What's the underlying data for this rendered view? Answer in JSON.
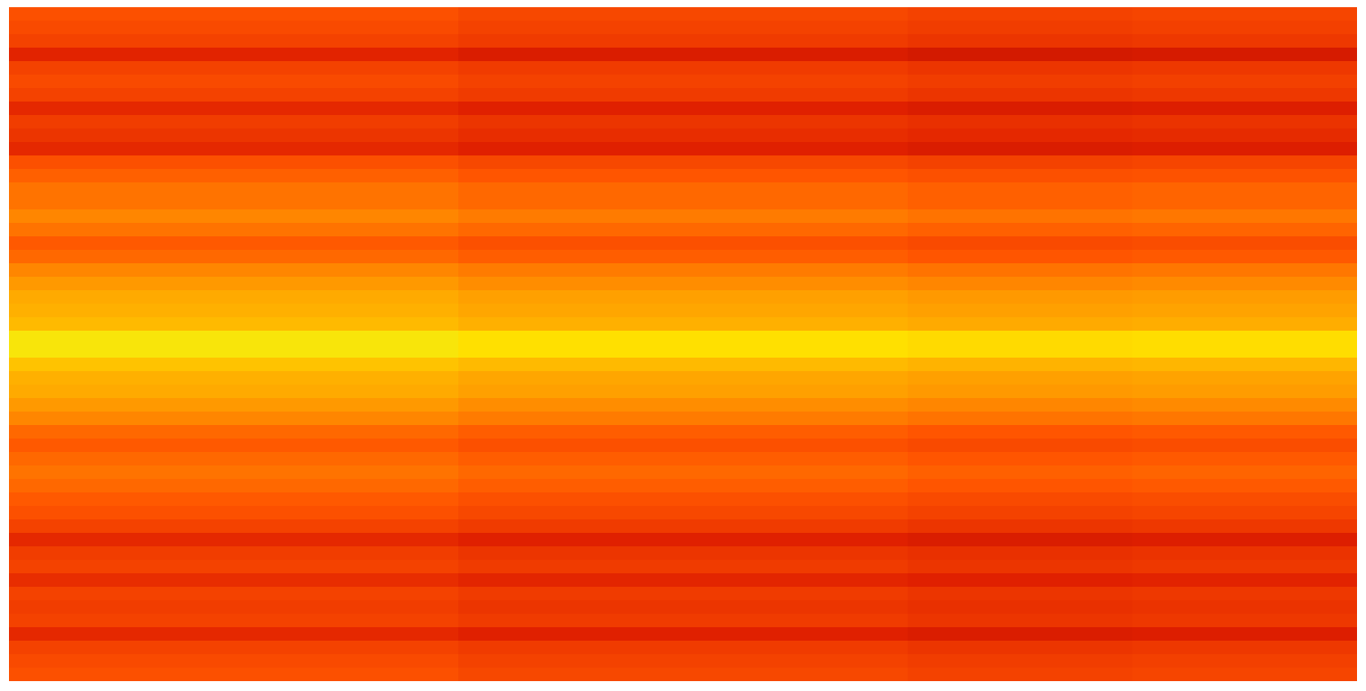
{
  "chart_data": {
    "type": "heatmap",
    "tick_labels": false,
    "zlim": [
      0,
      1
    ],
    "cells": [
      [
        0.38,
        0.38,
        0.35,
        0.35,
        0.33,
        0.34
      ],
      [
        0.36,
        0.36,
        0.33,
        0.33,
        0.31,
        0.32
      ],
      [
        0.33,
        0.33,
        0.3,
        0.3,
        0.28,
        0.29
      ],
      [
        0.21,
        0.21,
        0.18,
        0.18,
        0.16,
        0.17
      ],
      [
        0.33,
        0.33,
        0.3,
        0.3,
        0.28,
        0.29
      ],
      [
        0.36,
        0.36,
        0.33,
        0.33,
        0.31,
        0.32
      ],
      [
        0.33,
        0.33,
        0.3,
        0.3,
        0.28,
        0.29
      ],
      [
        0.23,
        0.23,
        0.2,
        0.2,
        0.18,
        0.19
      ],
      [
        0.31,
        0.31,
        0.28,
        0.28,
        0.26,
        0.27
      ],
      [
        0.28,
        0.28,
        0.25,
        0.25,
        0.23,
        0.24
      ],
      [
        0.23,
        0.23,
        0.2,
        0.2,
        0.18,
        0.19
      ],
      [
        0.38,
        0.38,
        0.35,
        0.35,
        0.33,
        0.34
      ],
      [
        0.43,
        0.43,
        0.4,
        0.4,
        0.38,
        0.39
      ],
      [
        0.48,
        0.48,
        0.45,
        0.45,
        0.43,
        0.44
      ],
      [
        0.48,
        0.48,
        0.45,
        0.45,
        0.43,
        0.44
      ],
      [
        0.53,
        0.53,
        0.5,
        0.5,
        0.48,
        0.49
      ],
      [
        0.48,
        0.48,
        0.45,
        0.45,
        0.43,
        0.44
      ],
      [
        0.41,
        0.41,
        0.38,
        0.38,
        0.36,
        0.37
      ],
      [
        0.45,
        0.45,
        0.42,
        0.42,
        0.4,
        0.41
      ],
      [
        0.53,
        0.53,
        0.5,
        0.5,
        0.48,
        0.49
      ],
      [
        0.58,
        0.58,
        0.55,
        0.55,
        0.53,
        0.54
      ],
      [
        0.63,
        0.63,
        0.6,
        0.6,
        0.58,
        0.59
      ],
      [
        0.65,
        0.65,
        0.62,
        0.62,
        0.6,
        0.61
      ],
      [
        0.68,
        0.68,
        0.65,
        0.65,
        0.63,
        0.64
      ],
      [
        0.83,
        0.83,
        0.8,
        0.8,
        0.78,
        0.79
      ],
      [
        0.83,
        0.83,
        0.8,
        0.8,
        0.78,
        0.79
      ],
      [
        0.71,
        0.71,
        0.68,
        0.68,
        0.66,
        0.67
      ],
      [
        0.65,
        0.65,
        0.62,
        0.62,
        0.6,
        0.61
      ],
      [
        0.63,
        0.63,
        0.6,
        0.6,
        0.58,
        0.59
      ],
      [
        0.58,
        0.58,
        0.55,
        0.55,
        0.53,
        0.54
      ],
      [
        0.53,
        0.53,
        0.5,
        0.5,
        0.48,
        0.49
      ],
      [
        0.45,
        0.45,
        0.42,
        0.42,
        0.4,
        0.41
      ],
      [
        0.41,
        0.41,
        0.38,
        0.38,
        0.36,
        0.37
      ],
      [
        0.45,
        0.45,
        0.42,
        0.42,
        0.4,
        0.41
      ],
      [
        0.48,
        0.48,
        0.45,
        0.45,
        0.43,
        0.44
      ],
      [
        0.45,
        0.45,
        0.42,
        0.42,
        0.4,
        0.41
      ],
      [
        0.41,
        0.41,
        0.38,
        0.38,
        0.36,
        0.37
      ],
      [
        0.38,
        0.38,
        0.35,
        0.35,
        0.33,
        0.34
      ],
      [
        0.33,
        0.33,
        0.3,
        0.3,
        0.28,
        0.29
      ],
      [
        0.23,
        0.23,
        0.2,
        0.2,
        0.18,
        0.19
      ],
      [
        0.31,
        0.31,
        0.28,
        0.28,
        0.26,
        0.27
      ],
      [
        0.33,
        0.33,
        0.3,
        0.3,
        0.28,
        0.29
      ],
      [
        0.25,
        0.25,
        0.22,
        0.22,
        0.2,
        0.21
      ],
      [
        0.33,
        0.33,
        0.3,
        0.3,
        0.28,
        0.29
      ],
      [
        0.31,
        0.31,
        0.28,
        0.28,
        0.26,
        0.27
      ],
      [
        0.33,
        0.33,
        0.3,
        0.3,
        0.28,
        0.29
      ],
      [
        0.23,
        0.23,
        0.2,
        0.2,
        0.18,
        0.19
      ],
      [
        0.33,
        0.33,
        0.3,
        0.3,
        0.28,
        0.29
      ],
      [
        0.36,
        0.36,
        0.33,
        0.33,
        0.31,
        0.32
      ],
      [
        0.38,
        0.38,
        0.35,
        0.35,
        0.33,
        0.34
      ]
    ]
  }
}
